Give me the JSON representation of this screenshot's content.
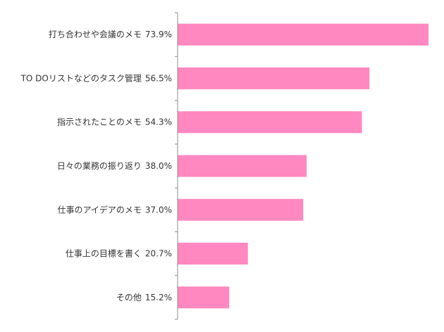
{
  "chart_data": {
    "type": "bar",
    "orientation": "horizontal",
    "categories": [
      "打ち合わせや会議のメモ",
      "TO DOリストなどのタスク管理",
      "指示されたことのメモ",
      "日々の業務の振り返り",
      "仕事のアイデアのメモ",
      "仕事上の目標を書く",
      "その他"
    ],
    "values": [
      73.9,
      56.5,
      54.3,
      38.0,
      37.0,
      20.7,
      15.2
    ],
    "value_labels": [
      "73.9%",
      "56.5%",
      "54.3%",
      "38.0%",
      "37.0%",
      "20.7%",
      "15.2%"
    ],
    "unit": "%",
    "xlim": [
      0,
      75
    ],
    "bar_color": "#ff88c0",
    "grid": false,
    "legend": "none"
  }
}
